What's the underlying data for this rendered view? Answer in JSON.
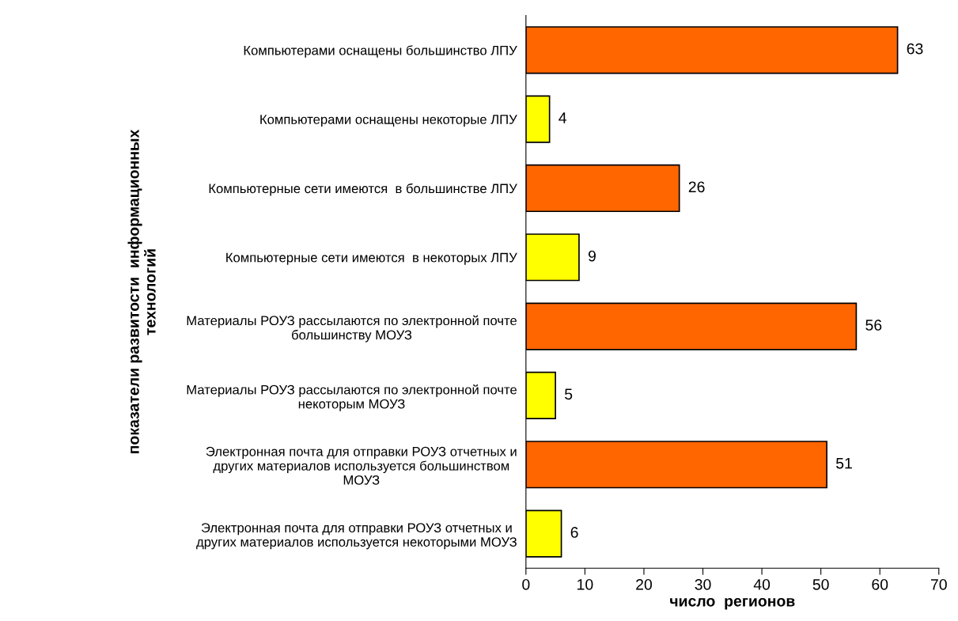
{
  "chart_data": {
    "type": "bar",
    "orientation": "horizontal",
    "xlabel": "число  регионов",
    "ylabel": "показатели развитости  информационных\nтехнологий",
    "categories": [
      "Компьютерами оснащены большинство ЛПУ",
      "Компьютерами оснащены некоторые ЛПУ",
      "Компьютерные сети имеются  в большинстве ЛПУ",
      "Компьютерные сети имеются  в некоторых ЛПУ",
      "Материалы РОУЗ рассылаются по электронной почте\nбольшинству МОУЗ",
      "Материалы РОУЗ рассылаются по электронной почте\nнекоторым МОУЗ",
      "Электронная почта для отправки РОУЗ отчетных и\nдругих материалов используется большинством\nМОУЗ",
      "Электронная почта для отправки РОУЗ отчетных и\nдругих материалов используется некоторыми МОУЗ"
    ],
    "values": [
      63,
      4,
      26,
      9,
      56,
      5,
      51,
      6
    ],
    "colors": [
      "#ff6600",
      "#ffff00",
      "#ff6600",
      "#ffff00",
      "#ff6600",
      "#ffff00",
      "#ff6600",
      "#ffff00"
    ],
    "xlim": [
      0,
      70
    ],
    "xticks": [
      0,
      10,
      20,
      30,
      40,
      50,
      60,
      70
    ],
    "data_labels": true,
    "grid": false,
    "legend": false
  }
}
